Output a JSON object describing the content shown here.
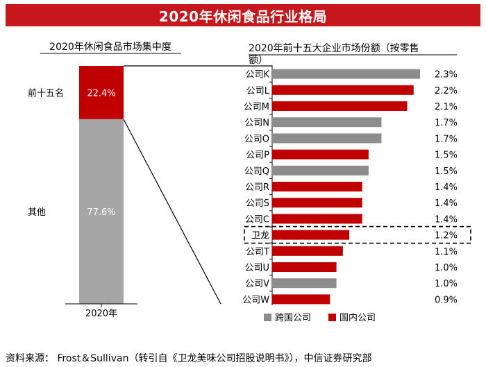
{
  "banner_title": "2020年休闲食品行业格局",
  "source_text": "资料来源： Frost＆Sullivan（转引自《卫龙美味公司招股说明书》），中信证券研究部",
  "colors": {
    "brand_red": "#c8161d",
    "bar_red": "#c00000",
    "bar_gray": "#8c8c8c",
    "stack_gray": "#a6a6a6"
  },
  "chart_data": [
    {
      "type": "bar",
      "stacked": true,
      "title": "2020年休闲食品市场集中度",
      "categories": [
        "2020年"
      ],
      "ylim": [
        0,
        100
      ],
      "series": [
        {
          "name": "前十五名",
          "values": [
            22.4
          ],
          "label": "22.4%",
          "color": "#c00000"
        },
        {
          "name": "其他",
          "values": [
            77.6
          ],
          "label": "77.6%",
          "color": "#a6a6a6"
        }
      ]
    },
    {
      "type": "bar",
      "orientation": "horizontal",
      "title": "2020年前十五大企业市场份额（按零售额）",
      "title_lines": [
        "2020年前十五大企业市场份额（按零售",
        "额）"
      ],
      "categories": [
        "公司K",
        "公司L",
        "公司M",
        "公司N",
        "公司O",
        "公司P",
        "公司Q",
        "公司R",
        "公司S",
        "公司C",
        "卫龙",
        "公司T",
        "公司U",
        "公司V",
        "公司W"
      ],
      "values": [
        2.3,
        2.2,
        2.1,
        1.7,
        1.7,
        1.5,
        1.5,
        1.4,
        1.4,
        1.4,
        1.2,
        1.1,
        1.0,
        1.0,
        0.9
      ],
      "value_labels": [
        "2.3%",
        "2.2%",
        "2.1%",
        "1.7%",
        "1.7%",
        "1.5%",
        "1.5%",
        "1.4%",
        "1.4%",
        "1.4%",
        "1.2%",
        "1.1%",
        "1.0%",
        "1.0%",
        "0.9%"
      ],
      "groups": [
        "跨国公司",
        "国内公司",
        "国内公司",
        "跨国公司",
        "跨国公司",
        "国内公司",
        "跨国公司",
        "国内公司",
        "国内公司",
        "国内公司",
        "国内公司",
        "国内公司",
        "国内公司",
        "跨国公司",
        "国内公司"
      ],
      "highlight": "卫龙",
      "xlim": [
        0,
        2.3
      ],
      "legend": [
        {
          "name": "跨国公司",
          "color": "#8c8c8c"
        },
        {
          "name": "国内公司",
          "color": "#c00000"
        }
      ],
      "legend_position": "bottom"
    }
  ]
}
